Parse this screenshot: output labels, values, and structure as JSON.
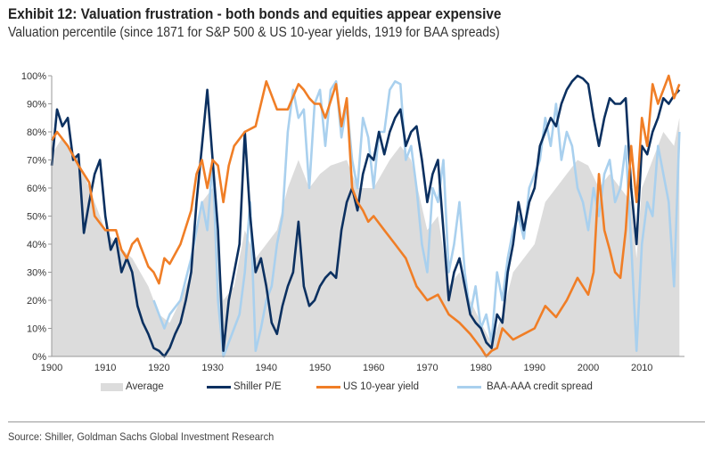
{
  "chart_data": {
    "type": "line",
    "title": "Exhibit 12: Valuation frustration - both bonds and equities appear expensive",
    "subtitle": "Valuation percentile (since 1871 for S&P 500 & US 10-year yields, 1919 for BAA spreads)",
    "xlabel": "",
    "ylabel": "",
    "xlim": [
      1900,
      2018
    ],
    "ylim": [
      0,
      100
    ],
    "x_ticks": [
      "1900",
      "1910",
      "1920",
      "1930",
      "1940",
      "1950",
      "1960",
      "1970",
      "1980",
      "1990",
      "2000",
      "2010"
    ],
    "y_ticks": [
      "0%",
      "10%",
      "20%",
      "30%",
      "40%",
      "50%",
      "60%",
      "70%",
      "80%",
      "90%",
      "100%"
    ],
    "grid": false,
    "legend_position": "bottom",
    "series": [
      {
        "name": "Average",
        "kind": "area",
        "color": "#dcdcdc",
        "x": [
          1900,
          1902,
          1905,
          1908,
          1910,
          1912,
          1915,
          1918,
          1920,
          1922,
          1924,
          1926,
          1928,
          1930,
          1932,
          1934,
          1936,
          1938,
          1940,
          1942,
          1944,
          1946,
          1948,
          1950,
          1952,
          1955,
          1957,
          1960,
          1963,
          1965,
          1967,
          1970,
          1972,
          1974,
          1976,
          1978,
          1980,
          1982,
          1984,
          1986,
          1988,
          1990,
          1992,
          1994,
          1996,
          1998,
          2000,
          2002,
          2004,
          2006,
          2008,
          2009,
          2010,
          2012,
          2014,
          2016,
          2017
        ],
        "values": [
          72,
          78,
          70,
          55,
          45,
          40,
          35,
          25,
          15,
          12,
          20,
          30,
          55,
          60,
          20,
          25,
          45,
          35,
          40,
          45,
          60,
          70,
          60,
          65,
          68,
          70,
          60,
          60,
          70,
          75,
          70,
          45,
          50,
          25,
          30,
          20,
          12,
          5,
          15,
          30,
          35,
          40,
          55,
          60,
          65,
          70,
          68,
          60,
          65,
          60,
          55,
          35,
          60,
          70,
          80,
          75,
          85
        ]
      },
      {
        "name": "Shiller P/E",
        "kind": "line",
        "color": "#0b3060",
        "x": [
          1900,
          1901,
          1902,
          1903,
          1904,
          1905,
          1906,
          1907,
          1908,
          1909,
          1910,
          1911,
          1912,
          1913,
          1914,
          1915,
          1916,
          1917,
          1918,
          1919,
          1920,
          1921,
          1922,
          1923,
          1924,
          1925,
          1926,
          1927,
          1928,
          1929,
          1930,
          1931,
          1932,
          1933,
          1934,
          1935,
          1936,
          1937,
          1938,
          1939,
          1940,
          1941,
          1942,
          1943,
          1944,
          1945,
          1946,
          1947,
          1948,
          1949,
          1950,
          1951,
          1952,
          1953,
          1954,
          1955,
          1956,
          1957,
          1958,
          1959,
          1960,
          1961,
          1962,
          1963,
          1964,
          1965,
          1966,
          1967,
          1968,
          1969,
          1970,
          1971,
          1972,
          1973,
          1974,
          1975,
          1976,
          1977,
          1978,
          1979,
          1980,
          1981,
          1982,
          1983,
          1984,
          1985,
          1986,
          1987,
          1988,
          1989,
          1990,
          1991,
          1992,
          1993,
          1994,
          1995,
          1996,
          1997,
          1998,
          1999,
          2000,
          2001,
          2002,
          2003,
          2004,
          2005,
          2006,
          2007,
          2008,
          2009,
          2010,
          2011,
          2012,
          2013,
          2014,
          2015,
          2016,
          2017
        ],
        "values": [
          68,
          88,
          82,
          85,
          70,
          72,
          44,
          55,
          65,
          70,
          50,
          38,
          42,
          30,
          35,
          30,
          18,
          12,
          8,
          3,
          2,
          0,
          3,
          8,
          12,
          20,
          30,
          55,
          75,
          95,
          70,
          45,
          2,
          20,
          30,
          40,
          80,
          50,
          30,
          35,
          25,
          12,
          8,
          18,
          25,
          30,
          48,
          25,
          18,
          20,
          25,
          28,
          30,
          28,
          45,
          55,
          60,
          52,
          65,
          72,
          70,
          80,
          72,
          80,
          85,
          88,
          75,
          80,
          82,
          70,
          55,
          65,
          70,
          45,
          20,
          30,
          35,
          25,
          15,
          12,
          10,
          5,
          3,
          15,
          12,
          30,
          40,
          55,
          45,
          55,
          60,
          75,
          80,
          85,
          82,
          90,
          95,
          98,
          100,
          99,
          97,
          85,
          75,
          85,
          92,
          90,
          90,
          92,
          60,
          40,
          75,
          72,
          80,
          85,
          92,
          90,
          93,
          95
        ]
      },
      {
        "name": "US 10-year yield",
        "kind": "line",
        "color": "#f07e26",
        "x": [
          1900,
          1901,
          1903,
          1905,
          1907,
          1908,
          1910,
          1912,
          1913,
          1914,
          1915,
          1916,
          1918,
          1919,
          1920,
          1921,
          1922,
          1924,
          1926,
          1927,
          1928,
          1929,
          1930,
          1931,
          1932,
          1933,
          1934,
          1936,
          1938,
          1940,
          1942,
          1944,
          1946,
          1947,
          1948,
          1949,
          1950,
          1951,
          1953,
          1954,
          1955,
          1956,
          1957,
          1958,
          1959,
          1960,
          1962,
          1964,
          1966,
          1968,
          1970,
          1972,
          1974,
          1976,
          1978,
          1980,
          1981,
          1982,
          1983,
          1984,
          1986,
          1988,
          1990,
          1992,
          1994,
          1996,
          1998,
          2000,
          2001,
          2002,
          2003,
          2004,
          2005,
          2006,
          2007,
          2008,
          2009,
          2010,
          2011,
          2012,
          2013,
          2014,
          2015,
          2016,
          2017
        ],
        "values": [
          77,
          80,
          75,
          68,
          62,
          50,
          45,
          45,
          38,
          35,
          40,
          42,
          32,
          30,
          26,
          35,
          33,
          40,
          52,
          65,
          70,
          60,
          70,
          68,
          55,
          68,
          75,
          80,
          82,
          98,
          88,
          88,
          97,
          95,
          92,
          90,
          90,
          85,
          97,
          82,
          92,
          60,
          55,
          52,
          48,
          50,
          45,
          40,
          35,
          25,
          20,
          22,
          15,
          12,
          8,
          3,
          0,
          2,
          3,
          10,
          6,
          8,
          10,
          18,
          14,
          20,
          28,
          22,
          30,
          65,
          45,
          38,
          30,
          28,
          45,
          75,
          55,
          85,
          75,
          97,
          90,
          95,
          100,
          92,
          97
        ]
      },
      {
        "name": "BAA-AAA credit spread",
        "kind": "line",
        "color": "#a9d0ee",
        "x": [
          1919,
          1920,
          1921,
          1922,
          1924,
          1926,
          1928,
          1929,
          1930,
          1931,
          1932,
          1933,
          1934,
          1935,
          1936,
          1937,
          1938,
          1939,
          1940,
          1941,
          1942,
          1943,
          1944,
          1945,
          1946,
          1947,
          1948,
          1949,
          1950,
          1951,
          1952,
          1953,
          1954,
          1955,
          1956,
          1957,
          1958,
          1959,
          1960,
          1961,
          1962,
          1963,
          1964,
          1965,
          1966,
          1967,
          1968,
          1969,
          1970,
          1971,
          1972,
          1973,
          1974,
          1975,
          1976,
          1977,
          1978,
          1979,
          1980,
          1981,
          1982,
          1983,
          1984,
          1985,
          1986,
          1987,
          1988,
          1989,
          1990,
          1991,
          1992,
          1993,
          1994,
          1995,
          1996,
          1997,
          1998,
          1999,
          2000,
          2001,
          2002,
          2003,
          2004,
          2005,
          2006,
          2007,
          2008,
          2009,
          2010,
          2011,
          2012,
          2013,
          2014,
          2015,
          2016,
          2017
        ],
        "values": [
          20,
          15,
          10,
          15,
          20,
          35,
          55,
          45,
          70,
          20,
          0,
          5,
          10,
          15,
          30,
          55,
          2,
          10,
          20,
          25,
          40,
          50,
          80,
          95,
          85,
          88,
          60,
          90,
          95,
          75,
          95,
          98,
          78,
          90,
          70,
          60,
          85,
          78,
          60,
          80,
          80,
          95,
          98,
          97,
          70,
          75,
          60,
          40,
          30,
          60,
          55,
          70,
          30,
          40,
          55,
          30,
          15,
          25,
          10,
          15,
          5,
          30,
          20,
          35,
          45,
          50,
          42,
          60,
          65,
          70,
          85,
          75,
          90,
          70,
          80,
          75,
          60,
          55,
          45,
          60,
          50,
          65,
          70,
          55,
          60,
          75,
          40,
          2,
          40,
          55,
          50,
          75,
          65,
          55,
          25,
          80
        ]
      }
    ]
  },
  "source": "Source: Shiller, Goldman Sachs Global Investment Research"
}
